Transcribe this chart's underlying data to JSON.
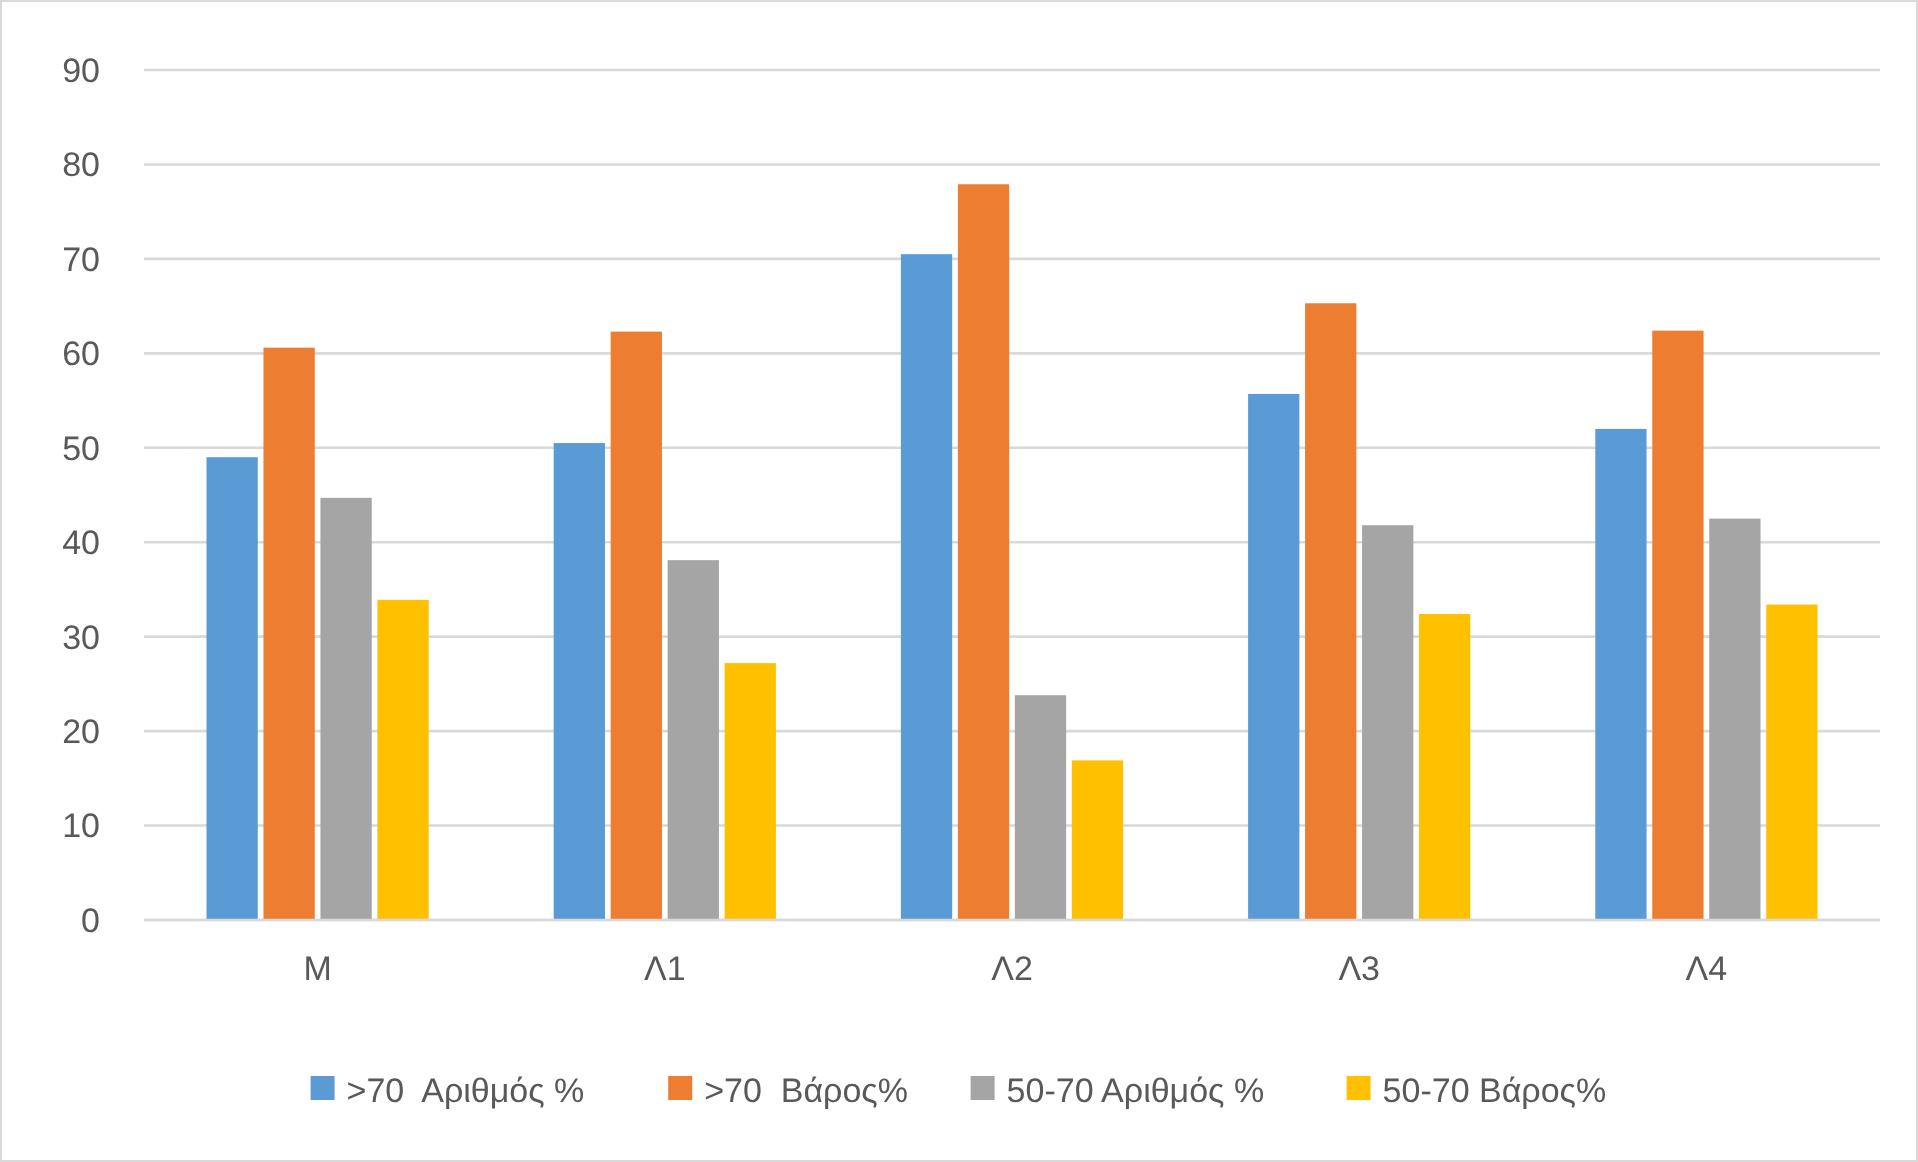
{
  "chart_data": {
    "type": "bar",
    "categories": [
      "M",
      "Λ1",
      "Λ2",
      "Λ3",
      "Λ4"
    ],
    "series": [
      {
        "name": ">70  Αριθμός %",
        "color": "#5b9bd5",
        "values": [
          49.0,
          50.5,
          70.5,
          55.7,
          52.0
        ]
      },
      {
        "name": ">70  Βάρος%",
        "color": "#ed7d31",
        "values": [
          60.6,
          62.3,
          77.9,
          65.3,
          62.4
        ]
      },
      {
        "name": "50-70 Αριθμός %",
        "color": "#a5a5a5",
        "values": [
          44.7,
          38.1,
          23.8,
          41.8,
          42.5
        ]
      },
      {
        "name": "50-70 Βάρος%",
        "color": "#ffc000",
        "values": [
          33.9,
          27.2,
          16.9,
          32.4,
          33.4
        ]
      }
    ],
    "ylim": [
      0,
      90
    ],
    "yticks": [
      0,
      10,
      20,
      30,
      40,
      50,
      60,
      70,
      80,
      90
    ],
    "grid": "y",
    "legend": "bottom"
  }
}
